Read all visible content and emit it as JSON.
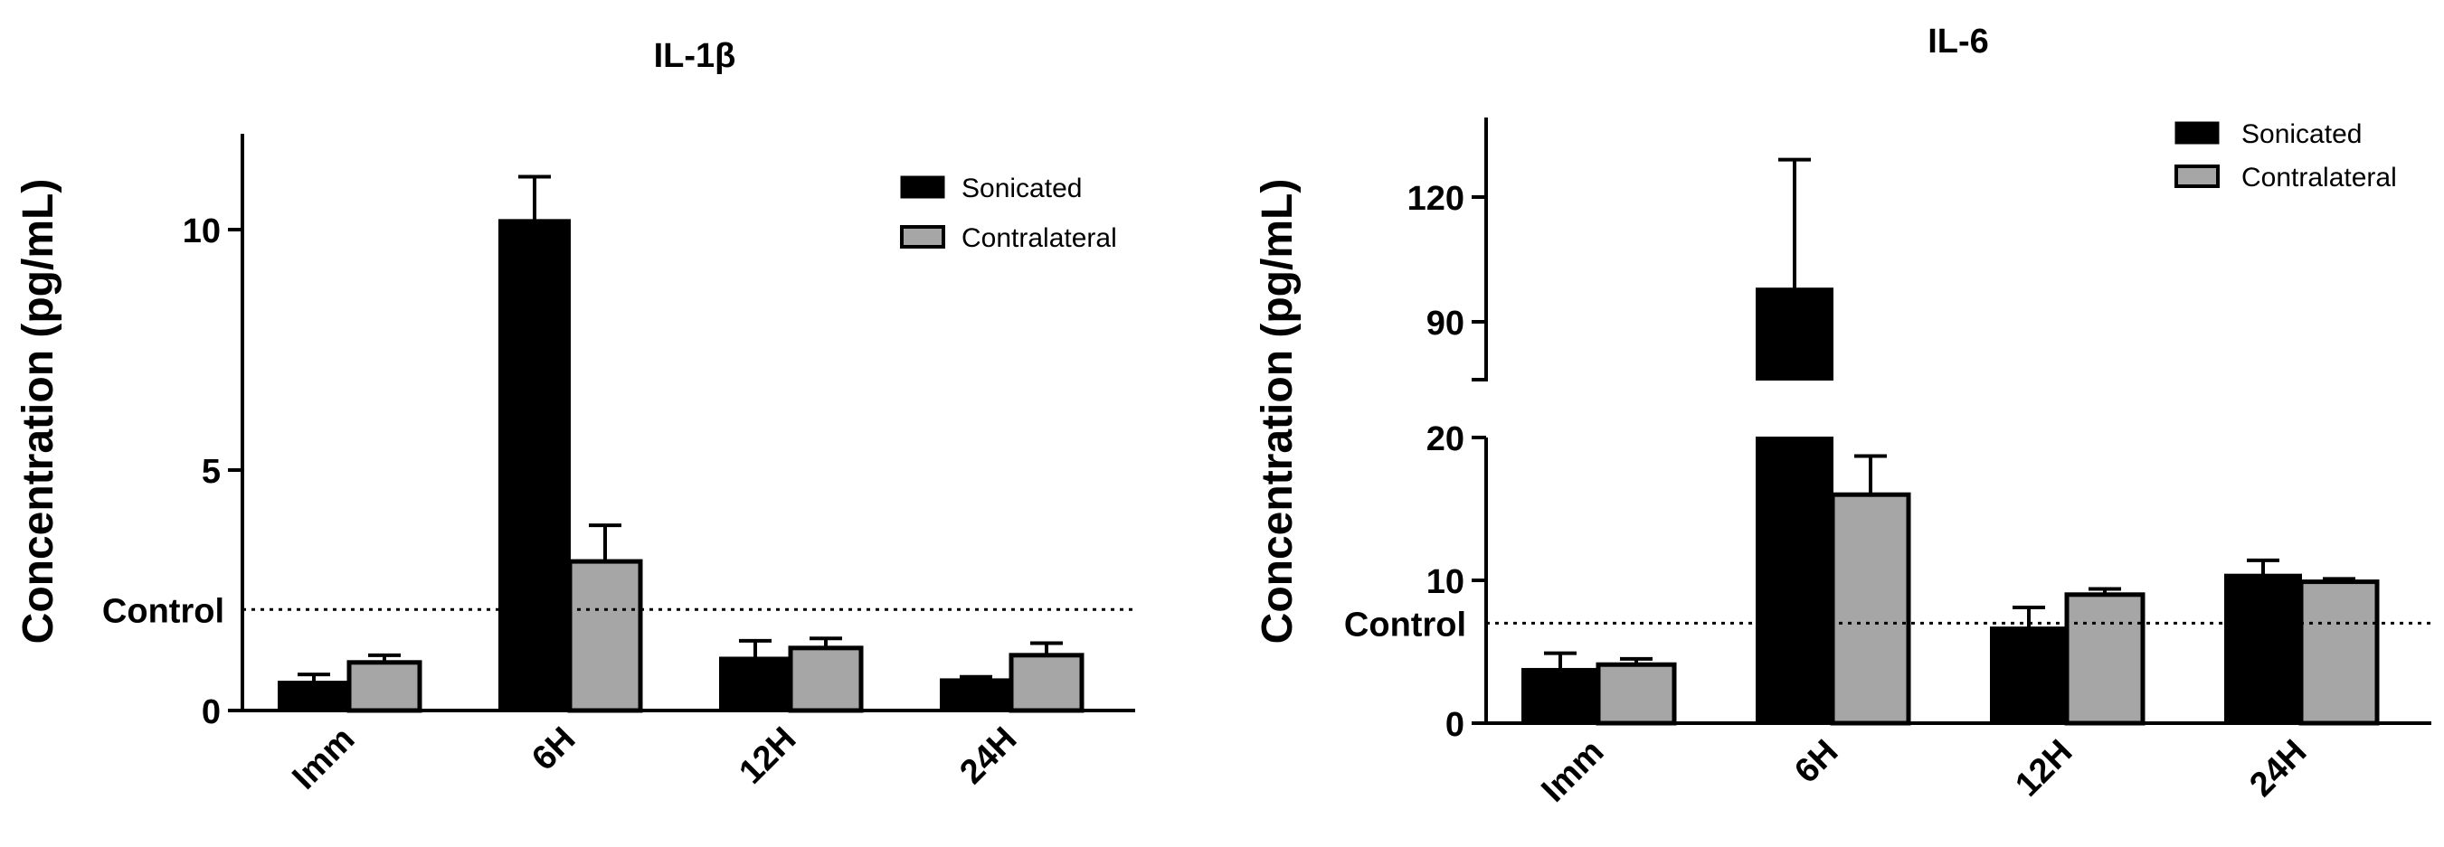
{
  "chart_data": [
    {
      "type": "bar",
      "title": "IL-1β",
      "ylabel": "Concentration (pg/mL)",
      "xlabel": "",
      "categories": [
        "Imm",
        "6H",
        "12H",
        "24H"
      ],
      "ylim": [
        0,
        12
      ],
      "yticks": [
        0,
        5,
        10
      ],
      "series": [
        {
          "name": "Sonicated",
          "color": "#000000",
          "values": [
            0.6,
            10.2,
            1.1,
            0.65
          ],
          "errors": [
            0.15,
            0.9,
            0.35,
            0.05
          ]
        },
        {
          "name": "Contralateral",
          "color": "#a6a6a6",
          "values": [
            1.0,
            3.1,
            1.3,
            1.15
          ],
          "errors": [
            0.15,
            0.75,
            0.2,
            0.25
          ]
        }
      ],
      "reference_line": {
        "label": "Control",
        "value": 2.1
      },
      "legend": "top-right"
    },
    {
      "type": "bar",
      "title": "IL-6",
      "ylabel": "Concentration (pg/mL)",
      "xlabel": "",
      "categories": [
        "Imm",
        "6H",
        "12H",
        "24H"
      ],
      "axis_break": {
        "lower": [
          0,
          20
        ],
        "upper": [
          75,
          140
        ]
      },
      "yticks": [
        0,
        10,
        20,
        90,
        120
      ],
      "series": [
        {
          "name": "Sonicated",
          "color": "#000000",
          "values": [
            3.8,
            98,
            6.7,
            10.4
          ],
          "errors": [
            1.1,
            31,
            1.4,
            1.0
          ]
        },
        {
          "name": "Contralateral",
          "color": "#a6a6a6",
          "values": [
            4.1,
            16.0,
            9.0,
            9.9
          ],
          "errors": [
            0.4,
            2.7,
            0.4,
            0.2
          ]
        }
      ],
      "reference_line": {
        "label": "Control",
        "value": 7.0
      },
      "legend": "top-right"
    }
  ]
}
